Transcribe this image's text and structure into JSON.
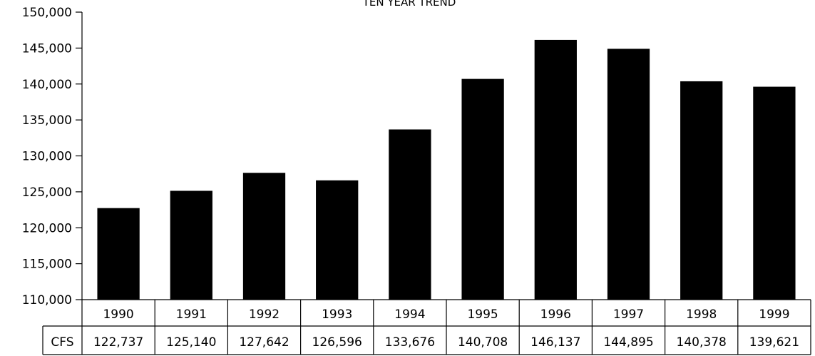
{
  "chart_data": {
    "type": "bar",
    "title": "TEN YEAR TREND",
    "categories": [
      "1990",
      "1991",
      "1992",
      "1993",
      "1994",
      "1995",
      "1996",
      "1997",
      "1998",
      "1999"
    ],
    "series": [
      {
        "name": "CFS",
        "values": [
          122737,
          125140,
          127642,
          126596,
          133676,
          140708,
          146137,
          144895,
          140378,
          139621
        ],
        "labels": [
          "122,737",
          "125,140",
          "127,642",
          "126,596",
          "133,676",
          "140,708",
          "146,137",
          "144,895",
          "140,378",
          "139,621"
        ]
      }
    ],
    "ylim": [
      110000,
      150000
    ],
    "yticks": [
      110000,
      115000,
      120000,
      125000,
      130000,
      135000,
      140000,
      145000,
      150000
    ],
    "ytick_labels": [
      "110,000",
      "115,000",
      "120,000",
      "125,000",
      "130,000",
      "135,000",
      "140,000",
      "145,000",
      "150,000"
    ],
    "bar_color": "#000000",
    "grid": false,
    "data_table": true
  }
}
